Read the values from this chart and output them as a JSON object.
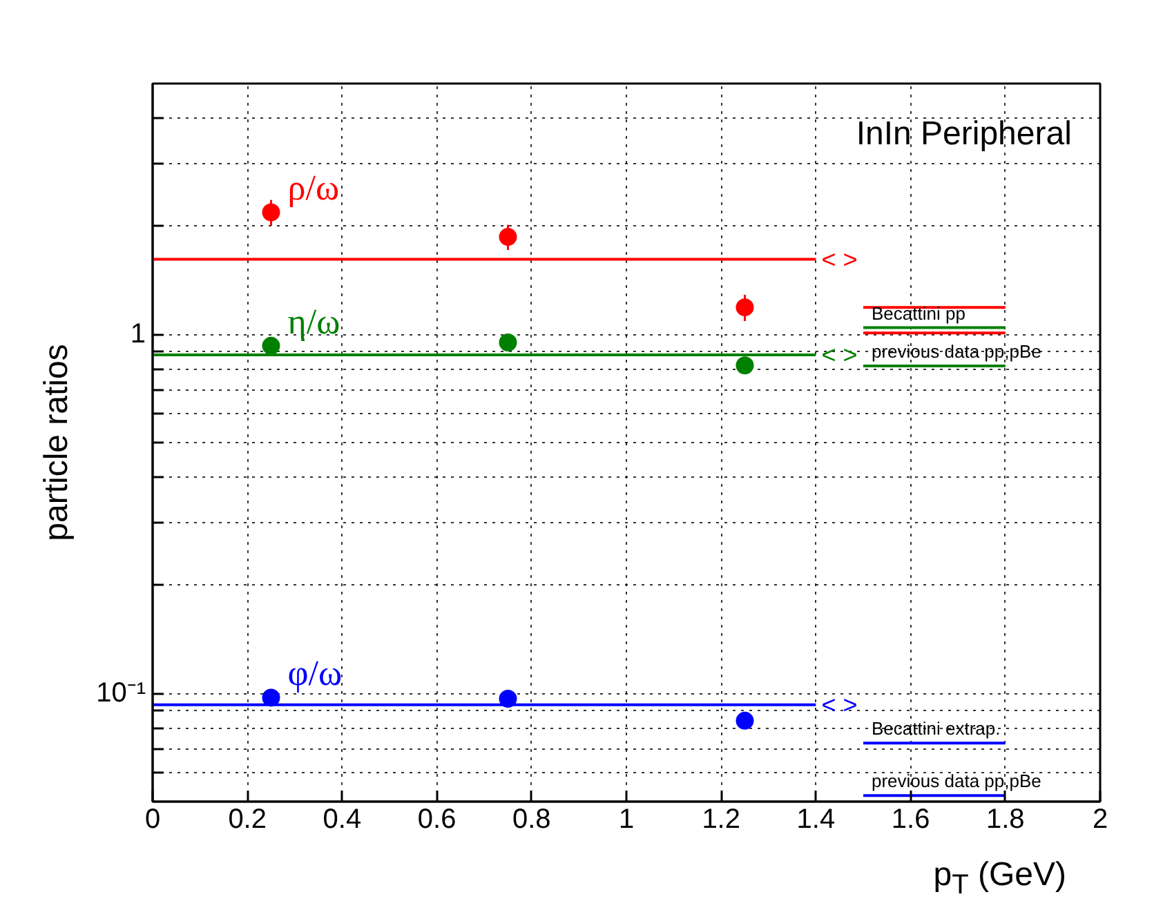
{
  "chart_data": {
    "type": "scatter",
    "title": "InIn Peripheral",
    "xlabel": "p$_{T}$ (GeV)",
    "ylabel": "particle ratios",
    "log": "y",
    "grid": true,
    "marker": "circle",
    "xlim": [
      0,
      2
    ],
    "xticks": [
      0,
      0.2,
      0.4,
      0.6,
      0.8,
      1,
      1.2,
      1.4,
      1.6,
      1.8,
      2
    ],
    "ylim": [
      0.05,
      5
    ],
    "yticks": [
      {
        "value": 0.06,
        "label": null
      },
      {
        "value": 0.07,
        "label": null
      },
      {
        "value": 0.08,
        "label": null
      },
      {
        "value": 0.09,
        "label": null
      },
      {
        "value": 0.1,
        "label": "10⁻¹"
      },
      {
        "value": 0.2,
        "label": null
      },
      {
        "value": 0.3,
        "label": null
      },
      {
        "value": 0.4,
        "label": null
      },
      {
        "value": 0.5,
        "label": null
      },
      {
        "value": 0.6,
        "label": null
      },
      {
        "value": 0.7,
        "label": null
      },
      {
        "value": 0.8,
        "label": null
      },
      {
        "value": 0.9,
        "label": null
      },
      {
        "value": 1,
        "label": "1"
      },
      {
        "value": 2,
        "label": null
      },
      {
        "value": 3,
        "label": null
      },
      {
        "value": 4,
        "label": null
      }
    ],
    "x": [
      0.25,
      0.75,
      1.25
    ],
    "series": [
      {
        "name": "ρ/ω",
        "color": "#ff0000",
        "values": [
          2.19,
          1.87,
          1.19
        ],
        "errors": [
          0.18,
          0.15,
          0.1
        ]
      },
      {
        "name": "η/ω",
        "color": "#008000",
        "values": [
          0.93,
          0.95,
          0.82
        ],
        "errors": [
          0.05,
          0.03,
          0.03
        ]
      },
      {
        "name": "φ/ω",
        "color": "#0000ff",
        "values": [
          0.0974,
          0.0967,
          0.084
        ],
        "errors": [
          0.005,
          0.004,
          0.004
        ]
      },
      {
        "name": "< >",
        "type": "line",
        "marker": "none",
        "color": "#ff0000",
        "x": [
          0,
          1.4
        ],
        "values": [
          1.62,
          1.62
        ]
      },
      {
        "name": "< >",
        "type": "line",
        "marker": "none",
        "color": "#008000",
        "x": [
          0,
          1.4
        ],
        "values": [
          0.877,
          0.877
        ]
      },
      {
        "name": "< >",
        "type": "line",
        "marker": "none",
        "color": "#0000ff",
        "x": [
          0,
          1.4
        ],
        "values": [
          0.093,
          0.093
        ]
      },
      {
        "type": "line",
        "marker": "none",
        "color": "#ff0000",
        "x": [
          1.5,
          1.8
        ],
        "values": [
          1.19,
          1.19
        ]
      },
      {
        "type": "line",
        "marker": "none",
        "color": "#ff0000",
        "x": [
          1.5,
          1.8
        ],
        "values": [
          1.01,
          1.01
        ]
      },
      {
        "type": "line",
        "marker": "none",
        "color": "#008000",
        "x": [
          1.5,
          1.8
        ],
        "values": [
          1.045,
          1.045
        ]
      },
      {
        "type": "line",
        "marker": "none",
        "color": "#008000",
        "x": [
          1.5,
          1.8
        ],
        "values": [
          0.817,
          0.817
        ]
      },
      {
        "type": "line",
        "marker": "none",
        "color": "#0000ff",
        "x": [
          1.5,
          1.8
        ],
        "values": [
          0.0728,
          0.0728
        ]
      },
      {
        "type": "line",
        "marker": "none",
        "color": "#0000ff",
        "x": [
          1.5,
          1.8
        ],
        "values": [
          0.052,
          0.052
        ]
      }
    ],
    "annotations": [
      "Becattini pp",
      "previous data pp,pBe",
      "Becattini extrap.",
      "previous data pp,pBe"
    ]
  }
}
